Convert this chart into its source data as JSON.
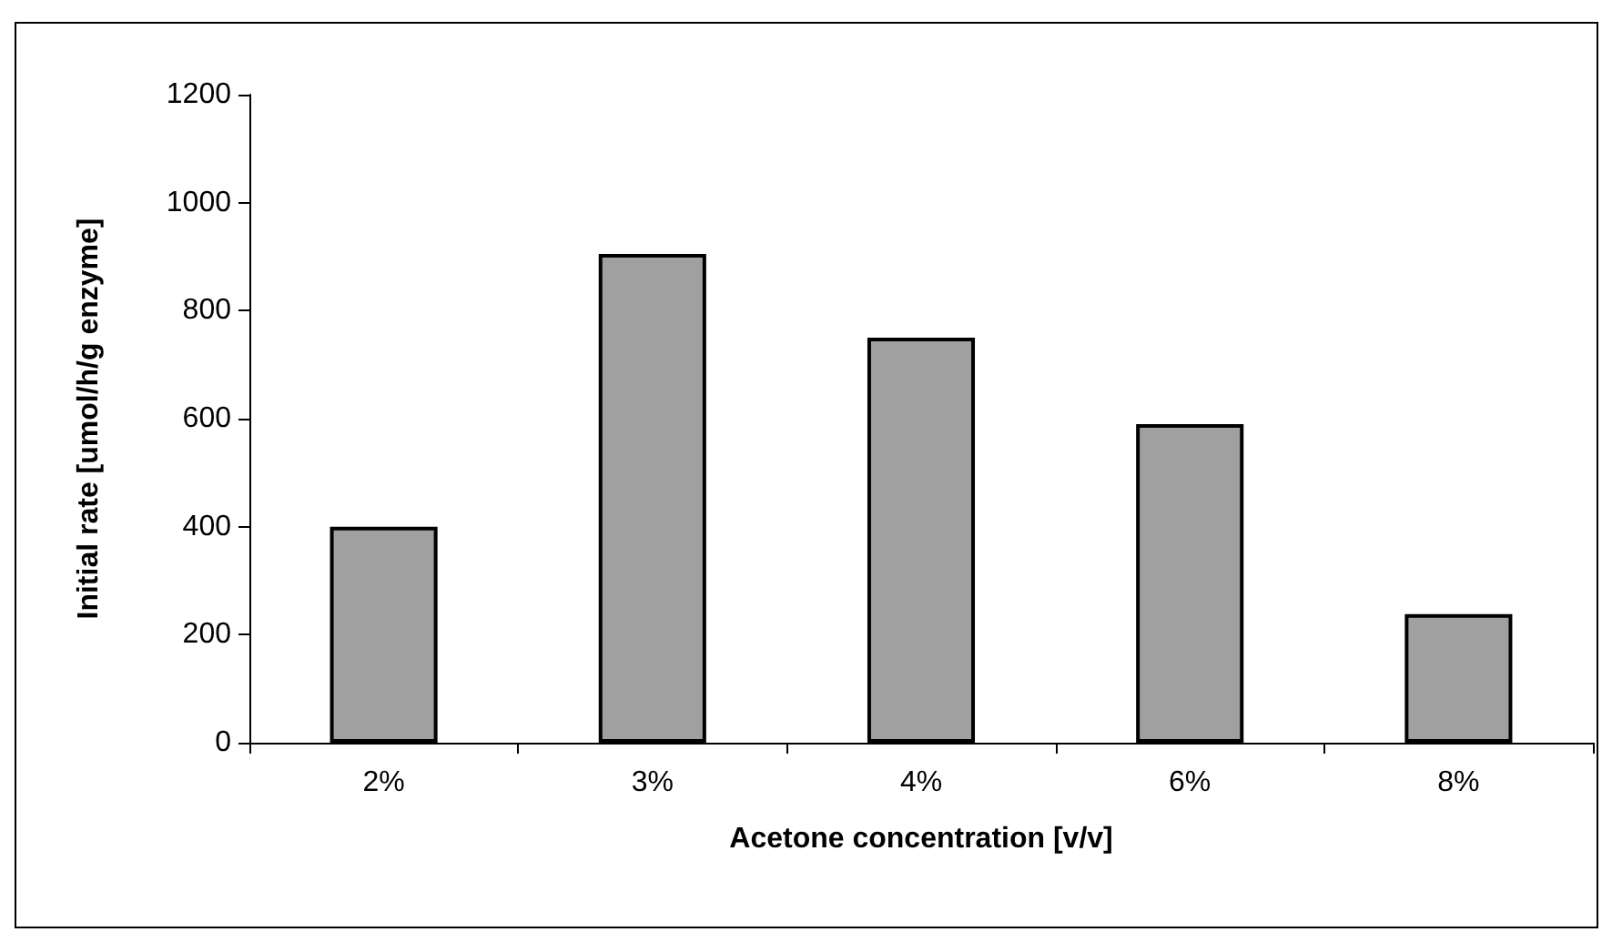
{
  "chart_data": {
    "type": "bar",
    "xlabel": "Acetone concentration [v/v]",
    "ylabel": "Initial rate [umol/h/g enzyme]",
    "categories": [
      "2%",
      "3%",
      "4%",
      "6%",
      "8%"
    ],
    "values": [
      400,
      905,
      750,
      590,
      238
    ],
    "color": "#a0a0a0",
    "ylim": [
      0,
      1200
    ],
    "yticks": [
      0,
      200,
      400,
      600,
      800,
      1000,
      1200
    ],
    "grid": false
  }
}
